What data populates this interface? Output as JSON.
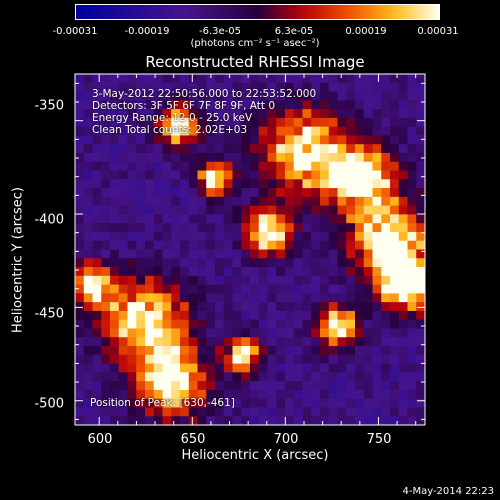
{
  "colorbar": {
    "ticks": [
      "-0.00031",
      "-0.00019",
      "-6.3e-05",
      "6.3e-05",
      "0.00019",
      "0.00031"
    ],
    "unit": "(photons cm⁻² s⁻¹ asec⁻²)",
    "range": [
      -0.00031,
      0.00031
    ]
  },
  "chart_data": {
    "type": "heatmap",
    "title": "Reconstructed RHESSI Image",
    "xlabel": "Heliocentric X (arcsec)",
    "ylabel": "Heliocentric Y (arcsec)",
    "xlim": [
      587,
      775
    ],
    "ylim": [
      -513,
      -325
    ],
    "xticks": [
      "600",
      "650",
      "700",
      "750"
    ],
    "yticks": [
      "-350",
      "-400",
      "-450",
      "-500"
    ],
    "colormap": "purple-red-yellow-white"
  },
  "annotations": {
    "time_range": "3-May-2012 22:50:56.000 to 22:53:52.000",
    "detectors": "Detectors: 3F 5F 6F 7F 8F 9F, Att 0",
    "energy": "Energy Range: 12.0 - 25.0 keV",
    "clean": "Clean    Total counts: 2.02E+03",
    "peak": "Position of Peak: [630,-461]"
  },
  "timestamp": "4-May-2014 22:23"
}
